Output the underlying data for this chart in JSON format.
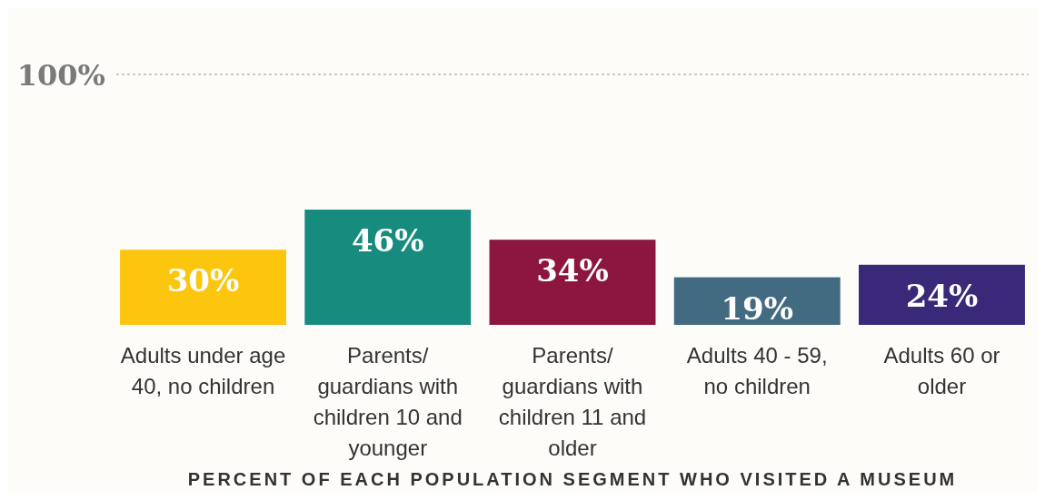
{
  "chart_data": {
    "type": "bar",
    "xlabel": "PERCENT OF EACH POPULATION SEGMENT WHO VISITED A MUSEUM",
    "categories": [
      "Adults under age 40, no children",
      "Parents/ guardians with children 10 and younger",
      "Parents/ guardians with children 11 and older",
      "Adults 40 - 59, no children",
      "Adults 60 or older"
    ],
    "values": [
      30,
      46,
      34,
      19,
      24
    ],
    "colors": [
      "#fcc60e",
      "#178c7e",
      "#8c163f",
      "#426a80",
      "#3a2878"
    ],
    "value_labels": [
      "30%",
      "46%",
      "34%",
      "19%",
      "24%"
    ],
    "ylim": [
      0,
      100
    ],
    "ref_lines": [
      {
        "axis": "y",
        "value": 100,
        "label": "100%",
        "line_style": "dotted"
      }
    ]
  }
}
